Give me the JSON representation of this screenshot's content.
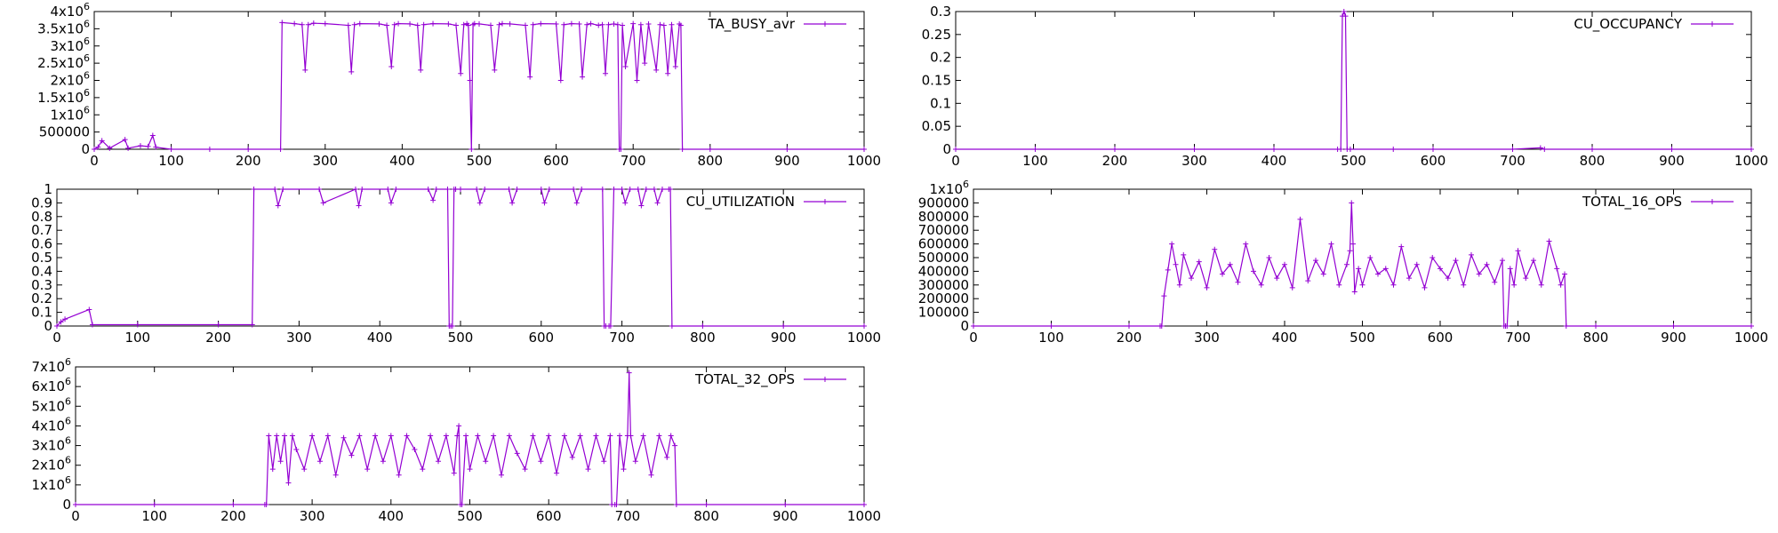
{
  "chart_data": [
    {
      "type": "line",
      "title": "",
      "xlabel": "",
      "ylabel": "",
      "xlim": [
        0,
        1000
      ],
      "ylim": [
        0,
        4000000
      ],
      "x_ticks": [
        "0",
        "100",
        "200",
        "300",
        "400",
        "500",
        "600",
        "700",
        "800",
        "900",
        "1000"
      ],
      "y_ticks": [
        {
          "v": 0,
          "m": "0",
          "e": ""
        },
        {
          "v": 500000,
          "m": "500000",
          "e": ""
        },
        {
          "v": 1000000,
          "m": "1x10",
          "e": "6"
        },
        {
          "v": 1500000,
          "m": "1.5x10",
          "e": "6"
        },
        {
          "v": 2000000,
          "m": "2x10",
          "e": "6"
        },
        {
          "v": 2500000,
          "m": "2.5x10",
          "e": "6"
        },
        {
          "v": 3000000,
          "m": "3x10",
          "e": "6"
        },
        {
          "v": 3500000,
          "m": "3.5x10",
          "e": "6"
        },
        {
          "v": 4000000,
          "m": "4x10",
          "e": "6"
        }
      ],
      "grid": false,
      "legend_position": "top-right",
      "series": [
        {
          "name": "TA_BUSY_avr",
          "x": [
            0,
            5,
            10,
            20,
            40,
            44,
            60,
            70,
            76,
            80,
            100,
            150,
            200,
            242,
            244,
            260,
            270,
            274,
            278,
            285,
            300,
            330,
            334,
            338,
            345,
            370,
            380,
            386,
            390,
            395,
            410,
            420,
            424,
            428,
            440,
            460,
            470,
            476,
            480,
            484,
            486,
            488,
            490,
            492,
            494,
            500,
            515,
            520,
            526,
            530,
            540,
            560,
            566,
            570,
            580,
            600,
            606,
            610,
            620,
            630,
            634,
            640,
            645,
            655,
            660,
            664,
            668,
            675,
            680,
            682,
            684,
            686,
            690,
            700,
            705,
            710,
            715,
            720,
            730,
            735,
            740,
            745,
            750,
            755,
            760,
            762,
            764,
            800,
            900,
            1000
          ],
          "y": [
            0,
            60000,
            250000,
            30000,
            280000,
            30000,
            100000,
            80000,
            400000,
            60000,
            0,
            0,
            0,
            0,
            3680000,
            3650000,
            3620000,
            2300000,
            3620000,
            3660000,
            3650000,
            3600000,
            2250000,
            3620000,
            3650000,
            3640000,
            3600000,
            2400000,
            3620000,
            3650000,
            3640000,
            3600000,
            2300000,
            3620000,
            3650000,
            3640000,
            3600000,
            2200000,
            3620000,
            3650000,
            3600000,
            2000000,
            0,
            3620000,
            3650000,
            3640000,
            3600000,
            2300000,
            3620000,
            3650000,
            3640000,
            3600000,
            2100000,
            3620000,
            3650000,
            3640000,
            2000000,
            3620000,
            3650000,
            3640000,
            2100000,
            3620000,
            3650000,
            3600000,
            3620000,
            2200000,
            3620000,
            3640000,
            3620000,
            0,
            0,
            3600000,
            2400000,
            3650000,
            2000000,
            3620000,
            2500000,
            3640000,
            2300000,
            3620000,
            3600000,
            2200000,
            3620000,
            2400000,
            3640000,
            3600000,
            0,
            0,
            0,
            0
          ],
          "color": "#9400d3"
        }
      ]
    },
    {
      "type": "line",
      "title": "",
      "xlabel": "",
      "ylabel": "",
      "xlim": [
        0,
        1000
      ],
      "ylim": [
        0,
        0.3
      ],
      "x_ticks": [
        "0",
        "100",
        "200",
        "300",
        "400",
        "500",
        "600",
        "700",
        "800",
        "900",
        "1000"
      ],
      "y_ticks": [
        {
          "v": 0,
          "m": "0",
          "e": ""
        },
        {
          "v": 0.05,
          "m": "0.05",
          "e": ""
        },
        {
          "v": 0.1,
          "m": "0.1",
          "e": ""
        },
        {
          "v": 0.15,
          "m": "0.15",
          "e": ""
        },
        {
          "v": 0.2,
          "m": "0.2",
          "e": ""
        },
        {
          "v": 0.25,
          "m": "0.25",
          "e": ""
        },
        {
          "v": 0.3,
          "m": "0.3",
          "e": ""
        }
      ],
      "grid": false,
      "legend_position": "top-right",
      "series": [
        {
          "name": "CU_OCCUPANCY",
          "x": [
            0,
            100,
            200,
            300,
            400,
            480,
            484,
            486,
            488,
            490,
            492,
            496,
            550,
            600,
            700,
            735,
            740,
            800,
            900,
            1000
          ],
          "y": [
            0,
            0,
            0,
            0,
            0,
            0,
            0,
            0.29,
            0.3,
            0.29,
            0,
            0,
            0,
            0,
            0,
            0.003,
            0,
            0,
            0,
            0
          ],
          "color": "#9400d3"
        }
      ]
    },
    {
      "type": "line",
      "title": "",
      "xlabel": "",
      "ylabel": "",
      "xlim": [
        0,
        1000
      ],
      "ylim": [
        0,
        1
      ],
      "x_ticks": [
        "0",
        "100",
        "200",
        "300",
        "400",
        "500",
        "600",
        "700",
        "800",
        "900",
        "1000"
      ],
      "y_ticks": [
        {
          "v": 0,
          "m": "0",
          "e": ""
        },
        {
          "v": 0.1,
          "m": "0.1",
          "e": ""
        },
        {
          "v": 0.2,
          "m": "0.2",
          "e": ""
        },
        {
          "v": 0.3,
          "m": "0.3",
          "e": ""
        },
        {
          "v": 0.4,
          "m": "0.4",
          "e": ""
        },
        {
          "v": 0.5,
          "m": "0.5",
          "e": ""
        },
        {
          "v": 0.6,
          "m": "0.6",
          "e": ""
        },
        {
          "v": 0.7,
          "m": "0.7",
          "e": ""
        },
        {
          "v": 0.8,
          "m": "0.8",
          "e": ""
        },
        {
          "v": 0.9,
          "m": "0.9",
          "e": ""
        },
        {
          "v": 1,
          "m": "1",
          "e": ""
        }
      ],
      "grid": false,
      "legend_position": "top-right",
      "series": [
        {
          "name": "CU_UTILIZATION",
          "x": [
            0,
            5,
            10,
            40,
            44,
            100,
            200,
            242,
            244,
            270,
            274,
            280,
            325,
            330,
            370,
            374,
            378,
            410,
            414,
            420,
            460,
            466,
            470,
            484,
            486,
            488,
            490,
            492,
            494,
            500,
            520,
            524,
            530,
            560,
            564,
            570,
            600,
            604,
            610,
            640,
            644,
            650,
            676,
            678,
            680,
            684,
            686,
            690,
            700,
            704,
            710,
            720,
            724,
            730,
            740,
            744,
            750,
            758,
            760,
            762,
            800,
            900,
            1000
          ],
          "y": [
            0,
            0.03,
            0.05,
            0.12,
            0.01,
            0.01,
            0.01,
            0.01,
            1,
            1,
            0.88,
            1,
            1,
            0.9,
            1,
            0.88,
            1,
            1,
            0.9,
            1,
            1,
            0.92,
            1,
            1,
            0,
            0,
            0,
            1,
            1,
            1,
            1,
            0.9,
            1,
            1,
            0.9,
            1,
            1,
            0.9,
            1,
            1,
            0.9,
            1,
            1,
            0,
            0,
            0,
            0,
            1,
            1,
            0.9,
            1,
            1,
            0.88,
            1,
            1,
            0.9,
            1,
            1,
            1,
            0,
            0,
            0,
            0
          ],
          "color": "#9400d3"
        }
      ]
    },
    {
      "type": "line",
      "title": "",
      "xlabel": "",
      "ylabel": "",
      "xlim": [
        0,
        1000
      ],
      "ylim": [
        0,
        1000000
      ],
      "x_ticks": [
        "0",
        "100",
        "200",
        "300",
        "400",
        "500",
        "600",
        "700",
        "800",
        "900",
        "1000"
      ],
      "y_ticks": [
        {
          "v": 0,
          "m": "0",
          "e": ""
        },
        {
          "v": 100000,
          "m": "100000",
          "e": ""
        },
        {
          "v": 200000,
          "m": "200000",
          "e": ""
        },
        {
          "v": 300000,
          "m": "300000",
          "e": ""
        },
        {
          "v": 400000,
          "m": "400000",
          "e": ""
        },
        {
          "v": 500000,
          "m": "500000",
          "e": ""
        },
        {
          "v": 600000,
          "m": "600000",
          "e": ""
        },
        {
          "v": 700000,
          "m": "700000",
          "e": ""
        },
        {
          "v": 800000,
          "m": "800000",
          "e": ""
        },
        {
          "v": 900000,
          "m": "900000",
          "e": ""
        },
        {
          "v": 1000000,
          "m": "1x10",
          "e": "6"
        }
      ],
      "grid": false,
      "legend_position": "top-right",
      "series": [
        {
          "name": "TOTAL_16_OPS",
          "x": [
            0,
            100,
            200,
            240,
            242,
            245,
            250,
            255,
            260,
            265,
            270,
            280,
            290,
            300,
            310,
            320,
            330,
            340,
            350,
            360,
            370,
            380,
            390,
            400,
            410,
            420,
            430,
            440,
            450,
            460,
            470,
            480,
            484,
            486,
            488,
            490,
            495,
            500,
            510,
            520,
            530,
            540,
            550,
            560,
            570,
            580,
            590,
            600,
            610,
            620,
            630,
            640,
            650,
            660,
            670,
            680,
            682,
            684,
            686,
            690,
            695,
            700,
            710,
            720,
            730,
            740,
            750,
            755,
            760,
            762,
            800,
            900,
            1000
          ],
          "y": [
            0,
            0,
            0,
            0,
            0,
            220000,
            410000,
            600000,
            450000,
            300000,
            520000,
            350000,
            470000,
            280000,
            560000,
            380000,
            450000,
            320000,
            600000,
            400000,
            300000,
            500000,
            350000,
            450000,
            280000,
            780000,
            330000,
            480000,
            380000,
            600000,
            300000,
            450000,
            550000,
            900000,
            600000,
            250000,
            420000,
            300000,
            500000,
            380000,
            420000,
            300000,
            580000,
            350000,
            450000,
            280000,
            500000,
            420000,
            350000,
            480000,
            300000,
            520000,
            380000,
            450000,
            320000,
            480000,
            0,
            0,
            0,
            420000,
            300000,
            550000,
            350000,
            480000,
            300000,
            620000,
            420000,
            300000,
            380000,
            0,
            0,
            0,
            0
          ],
          "color": "#9400d3"
        }
      ]
    },
    {
      "type": "line",
      "title": "",
      "xlabel": "",
      "ylabel": "",
      "xlim": [
        0,
        1000
      ],
      "ylim": [
        0,
        7000000
      ],
      "x_ticks": [
        "0",
        "100",
        "200",
        "300",
        "400",
        "500",
        "600",
        "700",
        "800",
        "900",
        "1000"
      ],
      "y_ticks": [
        {
          "v": 0,
          "m": "0",
          "e": ""
        },
        {
          "v": 1000000,
          "m": "1x10",
          "e": "6"
        },
        {
          "v": 2000000,
          "m": "2x10",
          "e": "6"
        },
        {
          "v": 3000000,
          "m": "3x10",
          "e": "6"
        },
        {
          "v": 4000000,
          "m": "4x10",
          "e": "6"
        },
        {
          "v": 5000000,
          "m": "5x10",
          "e": "6"
        },
        {
          "v": 6000000,
          "m": "6x10",
          "e": "6"
        },
        {
          "v": 7000000,
          "m": "7x10",
          "e": "6"
        }
      ],
      "grid": false,
      "legend_position": "top-right",
      "series": [
        {
          "name": "TOTAL_32_OPS",
          "x": [
            0,
            100,
            200,
            240,
            242,
            245,
            250,
            255,
            260,
            265,
            270,
            275,
            280,
            290,
            300,
            310,
            320,
            330,
            340,
            350,
            360,
            370,
            380,
            390,
            400,
            410,
            420,
            430,
            440,
            450,
            460,
            470,
            480,
            484,
            486,
            488,
            490,
            495,
            500,
            510,
            520,
            530,
            540,
            550,
            560,
            570,
            580,
            590,
            600,
            610,
            620,
            630,
            640,
            650,
            660,
            670,
            678,
            680,
            684,
            686,
            690,
            695,
            700,
            702,
            704,
            710,
            720,
            730,
            740,
            750,
            755,
            760,
            762,
            800,
            900,
            1000
          ],
          "y": [
            0,
            0,
            0,
            0,
            0,
            3500000,
            1800000,
            3500000,
            2200000,
            3500000,
            1100000,
            3500000,
            2800000,
            1800000,
            3500000,
            2200000,
            3500000,
            1500000,
            3400000,
            2500000,
            3500000,
            1800000,
            3500000,
            2200000,
            3500000,
            1500000,
            3500000,
            2800000,
            1800000,
            3500000,
            2200000,
            3500000,
            1600000,
            3500000,
            4000000,
            0,
            0,
            3500000,
            1800000,
            3500000,
            2200000,
            3500000,
            1500000,
            3500000,
            2600000,
            1800000,
            3500000,
            2200000,
            3500000,
            1600000,
            3500000,
            2400000,
            3500000,
            1800000,
            3500000,
            2200000,
            3500000,
            0,
            0,
            0,
            3500000,
            1800000,
            3500000,
            6700000,
            3500000,
            2200000,
            3500000,
            1500000,
            3500000,
            2400000,
            3500000,
            3000000,
            0,
            0,
            0,
            0
          ],
          "color": "#9400d3"
        }
      ]
    }
  ]
}
